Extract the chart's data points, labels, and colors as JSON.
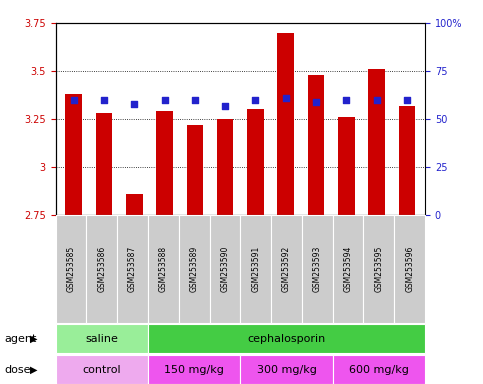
{
  "samples": [
    "GSM253585",
    "GSM253586",
    "GSM253587",
    "GSM253588",
    "GSM253589",
    "GSM253590",
    "GSM253591",
    "GSM253592",
    "GSM253593",
    "GSM253594",
    "GSM253595",
    "GSM253596"
  ],
  "bar_values": [
    3.38,
    3.28,
    2.86,
    3.29,
    3.22,
    3.25,
    3.3,
    3.7,
    3.48,
    3.26,
    3.51,
    3.32
  ],
  "dot_values": [
    3.35,
    3.35,
    3.33,
    3.35,
    3.35,
    3.32,
    3.35,
    3.36,
    3.34,
    3.35,
    3.35,
    3.35
  ],
  "bar_color": "#cc0000",
  "dot_color": "#2222cc",
  "ylim": [
    2.75,
    3.75
  ],
  "yticks": [
    2.75,
    3.0,
    3.25,
    3.5,
    3.75
  ],
  "ytick_labels": [
    "2.75",
    "3",
    "3.25",
    "3.5",
    "3.75"
  ],
  "y2lim": [
    0,
    100
  ],
  "y2ticks": [
    0,
    25,
    50,
    75,
    100
  ],
  "y2tick_labels": [
    "0",
    "25",
    "50",
    "75",
    "100%"
  ],
  "title_fontsize": 10,
  "tick_fontsize": 7,
  "label_fontsize": 8,
  "xtick_bg_color": "#cccccc",
  "agent_row": [
    {
      "label": "saline",
      "start": 0,
      "end": 3,
      "color": "#99ee99"
    },
    {
      "label": "cephalosporin",
      "start": 3,
      "end": 12,
      "color": "#44cc44"
    }
  ],
  "dose_row": [
    {
      "label": "control",
      "start": 0,
      "end": 3,
      "color": "#eeaaee"
    },
    {
      "label": "150 mg/kg",
      "start": 3,
      "end": 6,
      "color": "#ee55ee"
    },
    {
      "label": "300 mg/kg",
      "start": 6,
      "end": 9,
      "color": "#ee55ee"
    },
    {
      "label": "600 mg/kg",
      "start": 9,
      "end": 12,
      "color": "#ee55ee"
    }
  ],
  "legend_count_color": "#cc0000",
  "legend_dot_color": "#2222cc",
  "background_color": "#ffffff",
  "tick_label_color_left": "#cc0000",
  "tick_label_color_right": "#2222cc",
  "grid_color": "#000000",
  "spine_color": "#000000"
}
